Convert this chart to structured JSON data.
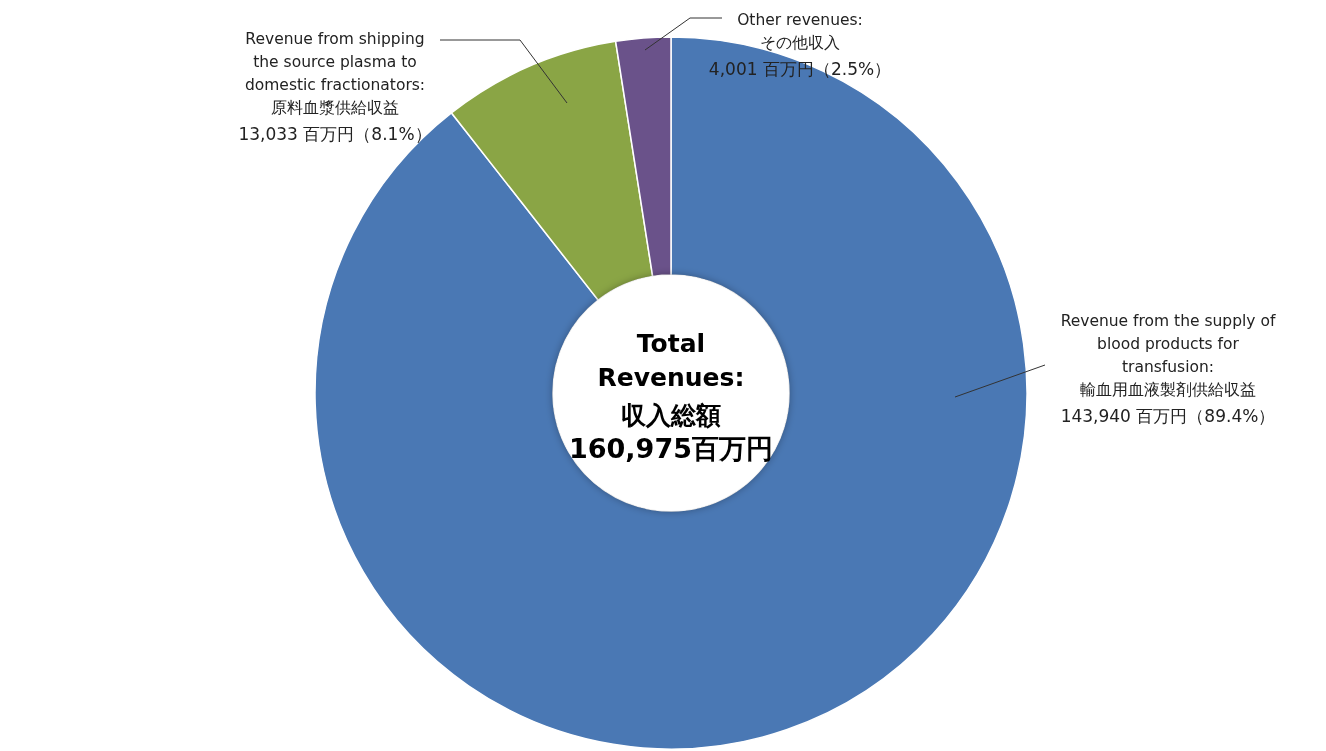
{
  "chart_data": {
    "type": "donut",
    "categories": [
      "Revenue from the supply of\nblood products for\ntransfusion:\n輸血用血液製剤供給収益",
      "Revenue from shipping\nthe source plasma to\ndomestic fractionators:\n原料血漿供給収益",
      "Other revenues:\nその他収入"
    ],
    "values": [
      143940,
      13033,
      4001
    ],
    "colors": [
      "#4a78b4",
      "#8aa545",
      "#6a528a"
    ],
    "value_labels": [
      "143,940 百万円（89.4%）",
      "13,033 百万円（8.1%）",
      "4,001 百万円（2.5%）"
    ],
    "annotations": [
      "Total\nRevenues:\n収入総額\n160,975百万円"
    ]
  }
}
